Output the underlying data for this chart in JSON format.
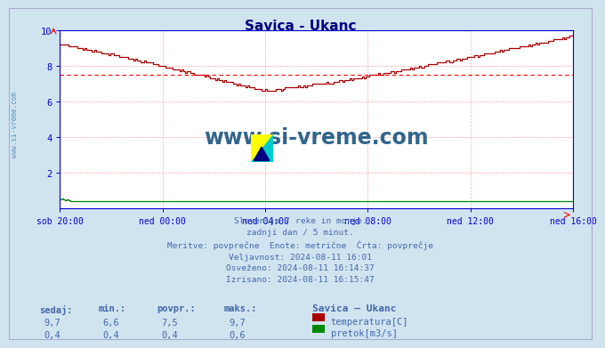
{
  "title": "Savica - Ukanc",
  "title_color": "#000080",
  "bg_color": "#d0e4f0",
  "plot_bg_color": "#ffffff",
  "grid_color": "#ffaaaa",
  "axis_color": "#0000cc",
  "text_color": "#4466aa",
  "xlabel_color": "#4466aa",
  "ylabel_color": "#4466aa",
  "x_tick_labels": [
    "sob 20:00",
    "ned 00:00",
    "ned 04:00",
    "ned 08:00",
    "ned 12:00",
    "ned 16:00"
  ],
  "x_tick_positions": [
    0,
    48,
    96,
    144,
    192,
    240
  ],
  "ylim": [
    0,
    10
  ],
  "xlim": [
    0,
    240
  ],
  "yticks": [
    2,
    4,
    6,
    8,
    10
  ],
  "avg_line_y": 7.5,
  "avg_line_color": "#ff0000",
  "temp_color": "#aa0000",
  "flow_color": "#008800",
  "watermark_text": "www.si-vreme.com",
  "watermark_color": "#1a5580",
  "info_lines": [
    "Slovenija / reke in morje.",
    "zadnji dan / 5 minut.",
    "Meritve: povprečne  Enote: metrične  Črta: povprečje",
    "Veljavnost: 2024-08-11 16:01",
    "Osveženo: 2024-08-11 16:14:37",
    "Izrisano: 2024-08-11 16:15:47"
  ],
  "stats_headers": [
    "sedaj:",
    "min.:",
    "povpr.:",
    "maks.:"
  ],
  "stats_temp": [
    "9,7",
    "6,6",
    "7,5",
    "9,7"
  ],
  "stats_flow": [
    "0,4",
    "0,4",
    "0,4",
    "0,6"
  ],
  "legend_title": "Savica – Ukanc",
  "legend_temp_label": "temperatura[C]",
  "legend_flow_label": "pretok[m3/s]",
  "sidebar_text": "www.si-vreme.com",
  "sidebar_color": "#5599bb"
}
